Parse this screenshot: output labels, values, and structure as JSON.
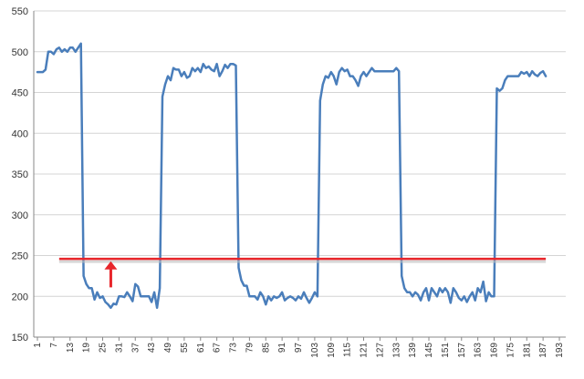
{
  "chart_data": {
    "type": "line",
    "ylim": [
      150,
      550
    ],
    "y_ticks": [
      150,
      200,
      250,
      300,
      350,
      400,
      450,
      500,
      550
    ],
    "x_range": [
      1,
      194
    ],
    "x_ticks": [
      1,
      7,
      13,
      19,
      25,
      31,
      37,
      43,
      49,
      55,
      61,
      67,
      73,
      79,
      85,
      91,
      97,
      103,
      109,
      115,
      121,
      127,
      133,
      139,
      145,
      151,
      157,
      163,
      169,
      175,
      181,
      187,
      193
    ],
    "grid": "horizontal",
    "legend": "none",
    "series": [
      {
        "color": "#4a7ebb",
        "points": [
          [
            1,
            475
          ],
          [
            3,
            475
          ],
          [
            4,
            478
          ],
          [
            5,
            500
          ],
          [
            6,
            500
          ],
          [
            7,
            497
          ],
          [
            8,
            503
          ],
          [
            9,
            505
          ],
          [
            10,
            500
          ],
          [
            11,
            503
          ],
          [
            12,
            500
          ],
          [
            13,
            505
          ],
          [
            14,
            505
          ],
          [
            15,
            500
          ],
          [
            16,
            505
          ],
          [
            17,
            510
          ],
          [
            18,
            225
          ],
          [
            19,
            215
          ],
          [
            20,
            210
          ],
          [
            21,
            210
          ],
          [
            22,
            196
          ],
          [
            23,
            205
          ],
          [
            24,
            198
          ],
          [
            25,
            200
          ],
          [
            26,
            193
          ],
          [
            27,
            190
          ],
          [
            28,
            186
          ],
          [
            29,
            191
          ],
          [
            30,
            190
          ],
          [
            31,
            200
          ],
          [
            32,
            200
          ],
          [
            33,
            199
          ],
          [
            34,
            205
          ],
          [
            35,
            200
          ],
          [
            36,
            194
          ],
          [
            37,
            215
          ],
          [
            38,
            212
          ],
          [
            39,
            200
          ],
          [
            40,
            200
          ],
          [
            41,
            200
          ],
          [
            42,
            200
          ],
          [
            43,
            193
          ],
          [
            44,
            205
          ],
          [
            45,
            186
          ],
          [
            46,
            210
          ],
          [
            47,
            445
          ],
          [
            48,
            460
          ],
          [
            49,
            470
          ],
          [
            50,
            465
          ],
          [
            51,
            480
          ],
          [
            52,
            478
          ],
          [
            53,
            478
          ],
          [
            54,
            470
          ],
          [
            55,
            475
          ],
          [
            56,
            468
          ],
          [
            57,
            470
          ],
          [
            58,
            480
          ],
          [
            59,
            476
          ],
          [
            60,
            480
          ],
          [
            61,
            475
          ],
          [
            62,
            485
          ],
          [
            63,
            480
          ],
          [
            64,
            482
          ],
          [
            65,
            478
          ],
          [
            66,
            476
          ],
          [
            67,
            485
          ],
          [
            68,
            470
          ],
          [
            69,
            476
          ],
          [
            70,
            484
          ],
          [
            71,
            480
          ],
          [
            72,
            485
          ],
          [
            73,
            485
          ],
          [
            74,
            483
          ],
          [
            75,
            235
          ],
          [
            76,
            220
          ],
          [
            77,
            213
          ],
          [
            78,
            213
          ],
          [
            79,
            200
          ],
          [
            80,
            200
          ],
          [
            81,
            200
          ],
          [
            82,
            196
          ],
          [
            83,
            205
          ],
          [
            84,
            200
          ],
          [
            85,
            190
          ],
          [
            86,
            200
          ],
          [
            87,
            195
          ],
          [
            88,
            200
          ],
          [
            89,
            198
          ],
          [
            90,
            200
          ],
          [
            91,
            205
          ],
          [
            92,
            195
          ],
          [
            93,
            198
          ],
          [
            94,
            200
          ],
          [
            95,
            198
          ],
          [
            96,
            195
          ],
          [
            97,
            200
          ],
          [
            98,
            197
          ],
          [
            99,
            205
          ],
          [
            100,
            198
          ],
          [
            101,
            192
          ],
          [
            102,
            198
          ],
          [
            103,
            205
          ],
          [
            104,
            200
          ],
          [
            105,
            440
          ],
          [
            106,
            460
          ],
          [
            107,
            470
          ],
          [
            108,
            468
          ],
          [
            109,
            475
          ],
          [
            110,
            470
          ],
          [
            111,
            460
          ],
          [
            112,
            475
          ],
          [
            113,
            480
          ],
          [
            114,
            476
          ],
          [
            115,
            478
          ],
          [
            116,
            470
          ],
          [
            117,
            470
          ],
          [
            118,
            465
          ],
          [
            119,
            458
          ],
          [
            120,
            470
          ],
          [
            121,
            475
          ],
          [
            122,
            470
          ],
          [
            123,
            475
          ],
          [
            124,
            480
          ],
          [
            125,
            476
          ],
          [
            126,
            476
          ],
          [
            127,
            476
          ],
          [
            128,
            476
          ],
          [
            129,
            476
          ],
          [
            130,
            476
          ],
          [
            131,
            476
          ],
          [
            132,
            476
          ],
          [
            133,
            480
          ],
          [
            134,
            476
          ],
          [
            135,
            225
          ],
          [
            136,
            210
          ],
          [
            137,
            205
          ],
          [
            138,
            205
          ],
          [
            139,
            200
          ],
          [
            140,
            205
          ],
          [
            141,
            202
          ],
          [
            142,
            195
          ],
          [
            143,
            205
          ],
          [
            144,
            210
          ],
          [
            145,
            195
          ],
          [
            146,
            210
          ],
          [
            147,
            205
          ],
          [
            148,
            200
          ],
          [
            149,
            210
          ],
          [
            150,
            205
          ],
          [
            151,
            210
          ],
          [
            152,
            205
          ],
          [
            153,
            192
          ],
          [
            154,
            210
          ],
          [
            155,
            205
          ],
          [
            156,
            198
          ],
          [
            157,
            195
          ],
          [
            158,
            200
          ],
          [
            159,
            193
          ],
          [
            160,
            200
          ],
          [
            161,
            205
          ],
          [
            162,
            195
          ],
          [
            163,
            210
          ],
          [
            164,
            205
          ],
          [
            165,
            218
          ],
          [
            166,
            194
          ],
          [
            167,
            205
          ],
          [
            168,
            200
          ],
          [
            169,
            200
          ],
          [
            170,
            455
          ],
          [
            171,
            452
          ],
          [
            172,
            455
          ],
          [
            173,
            465
          ],
          [
            174,
            470
          ],
          [
            175,
            470
          ],
          [
            176,
            470
          ],
          [
            177,
            470
          ],
          [
            178,
            470
          ],
          [
            179,
            475
          ],
          [
            180,
            473
          ],
          [
            181,
            475
          ],
          [
            182,
            470
          ],
          [
            183,
            476
          ],
          [
            184,
            472
          ],
          [
            185,
            470
          ],
          [
            186,
            474
          ],
          [
            187,
            476
          ],
          [
            188,
            470
          ]
        ]
      }
    ],
    "reference_line": {
      "y": 246,
      "color": "#e8262b",
      "x_start": 9,
      "x_end": 188
    },
    "arrow": {
      "x": 28,
      "y_from": 211,
      "y_to": 243,
      "color": "#e8262b"
    }
  }
}
